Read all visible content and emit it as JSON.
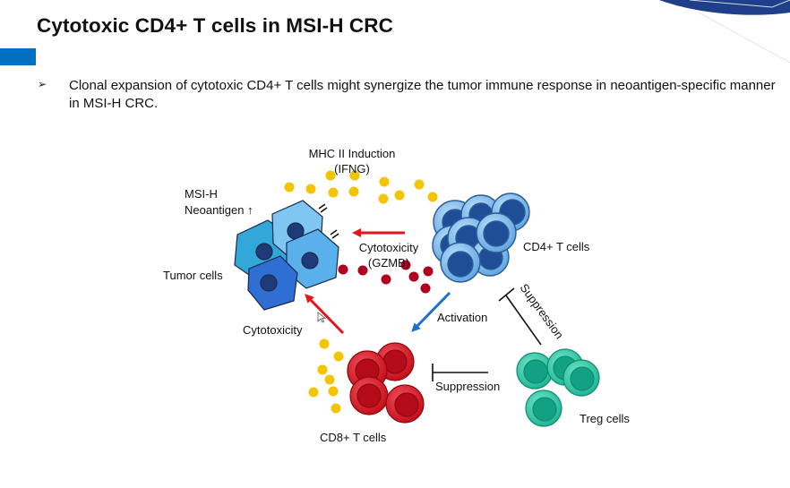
{
  "slide": {
    "title": "Cytotoxic CD4+ T cells in MSI-H CRC",
    "bullet_marker": "➢",
    "bullet_text": "Clonal expansion of cytotoxic CD4+ T cells might synergize the tumor immune response in neoantigen-specific manner in MSI-H CRC."
  },
  "diagram": {
    "mhc_line1": "MHC II Induction",
    "mhc_line2": "(IFNG)",
    "msih_line1": "MSI-H",
    "msih_line2": "Neoantigen ↑",
    "tumor_cells": "Tumor cells",
    "cytotox_gzmb_line1": "Cytotoxicity",
    "cytotox_gzmb_line2": "(GZMB)",
    "cd4_cells": "CD4+ T cells",
    "activation": "Activation",
    "suppression_cd4": "Suppression",
    "cytotox_cd8": "Cytotoxicity",
    "suppression_cd8": "Suppression",
    "cd8_cells": "CD8+ T cells",
    "treg_cells": "Treg cells"
  },
  "colors": {
    "accent": "#0070c0",
    "ifng_dot": "#f5c400",
    "gzmb_dot": "#b0001e",
    "cd4_outer": "#6aaee4",
    "cd4_nucleus": "#1f4e96",
    "cd8_cell": "#d0101e",
    "treg_cell": "#1fbf98",
    "red_arrow": "#e8121a",
    "blue_arrow": "#1f6fcf"
  }
}
